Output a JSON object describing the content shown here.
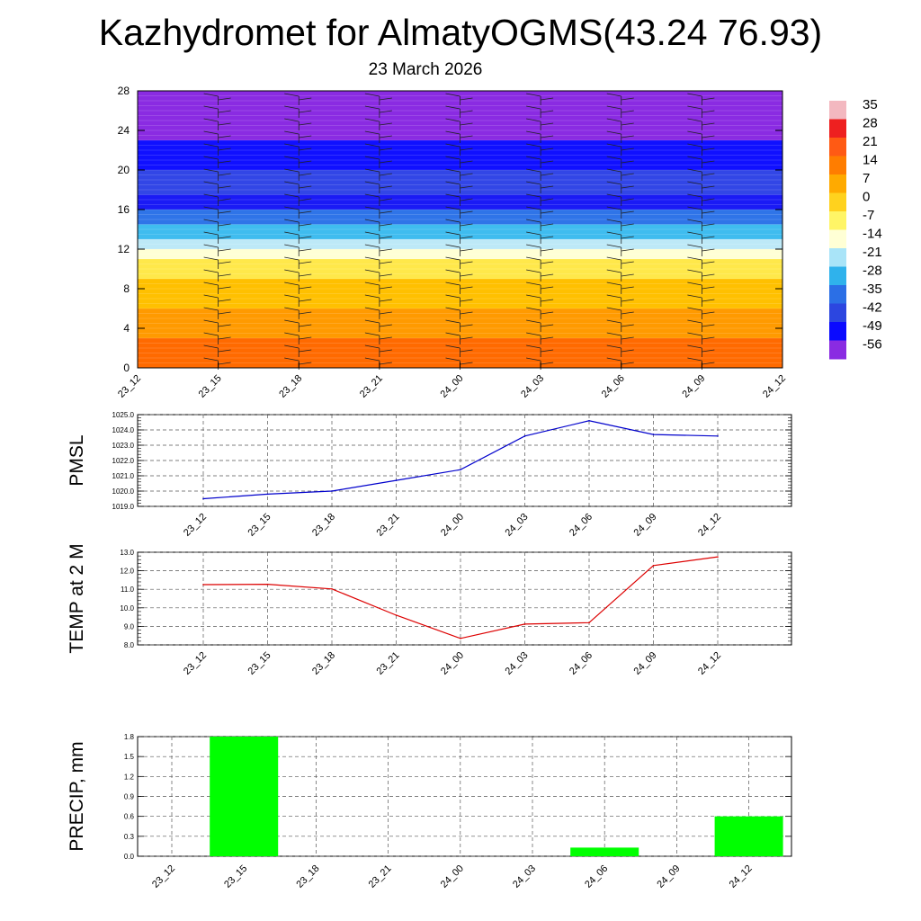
{
  "title": "Kazhydromet for AlmatyOGMS(43.24 76.93)",
  "subtitle": "23 March 2026",
  "colorbar": {
    "labels": [
      "35",
      "28",
      "21",
      "14",
      "7",
      "0",
      "-7",
      "-14",
      "-21",
      "-28",
      "-35",
      "-42",
      "-49",
      "-56"
    ],
    "colors": [
      "#f3b8c0",
      "#ee2020",
      "#ff5a14",
      "#ff7d00",
      "#ffaa00",
      "#ffd21e",
      "#fff566",
      "#ffffd5",
      "#a9e4f8",
      "#2fb2ec",
      "#2b6fe6",
      "#2c46e0",
      "#0a0aff",
      "#8a2be2"
    ]
  },
  "chart_data": [
    {
      "type": "heatmap",
      "name": "upper-air cross-section",
      "x": [
        "23_12",
        "23_15",
        "23_18",
        "23_21",
        "24_00",
        "24_03",
        "24_06",
        "24_09",
        "24_12"
      ],
      "ylim": [
        0,
        28
      ],
      "yticks": [
        "0",
        "4",
        "8",
        "12",
        "16",
        "20",
        "24",
        "28"
      ],
      "color_bands": [
        {
          "from": 0,
          "to": 3,
          "value": 14,
          "color": "#ff6a00"
        },
        {
          "from": 3,
          "to": 6,
          "value": 7,
          "color": "#ff9a00"
        },
        {
          "from": 6,
          "to": 9,
          "value": 0,
          "color": "#ffc000"
        },
        {
          "from": 9,
          "to": 11,
          "value": -7,
          "color": "#ffe84a"
        },
        {
          "from": 11,
          "to": 12,
          "value": -14,
          "color": "#ffffd5"
        },
        {
          "from": 12,
          "to": 13,
          "value": -21,
          "color": "#bde9f7"
        },
        {
          "from": 13,
          "to": 14.5,
          "value": -28,
          "color": "#3fbcef"
        },
        {
          "from": 14.5,
          "to": 16,
          "value": -35,
          "color": "#2f74e8"
        },
        {
          "from": 16,
          "to": 17.5,
          "value": -49,
          "color": "#1a1af5"
        },
        {
          "from": 17.5,
          "to": 20,
          "value": -42,
          "color": "#3246e6"
        },
        {
          "from": 20,
          "to": 23,
          "value": -56,
          "color": "#1010ff"
        },
        {
          "from": 23,
          "to": 28,
          "value": -49,
          "color": "#8a2be2"
        }
      ]
    },
    {
      "type": "line",
      "ylabel": "PMSL",
      "ylim": [
        1019,
        1025
      ],
      "yticks": [
        "1019.0",
        "1020.0",
        "1021.0",
        "1022.0",
        "1023.0",
        "1024.0",
        "1025.0"
      ],
      "x": [
        "23_12",
        "23_15",
        "23_18",
        "23_21",
        "24_00",
        "24_03",
        "24_06",
        "24_09",
        "24_12"
      ],
      "values": [
        1019.5,
        1019.8,
        1020.0,
        1020.7,
        1021.4,
        1023.6,
        1024.6,
        1023.7,
        1023.6
      ],
      "color": "#0000cc"
    },
    {
      "type": "line",
      "ylabel": "TEMP at 2 M",
      "ylim": [
        8,
        13
      ],
      "yticks": [
        "8.0",
        "9.0",
        "10.0",
        "11.0",
        "12.0",
        "13.0"
      ],
      "x": [
        "23_12",
        "23_15",
        "23_18",
        "23_21",
        "24_00",
        "24_03",
        "24_06",
        "24_09",
        "24_12"
      ],
      "values": [
        11.25,
        11.27,
        11.02,
        9.6,
        8.35,
        9.12,
        9.2,
        12.28,
        12.75
      ],
      "color": "#dd0000"
    },
    {
      "type": "bar",
      "ylabel": "PRECIP, mm",
      "ylim": [
        0,
        1.8
      ],
      "yticks": [
        "0.0",
        "0.3",
        "0.6",
        "0.9",
        "1.2",
        "1.5",
        "1.8"
      ],
      "categories": [
        "23_12",
        "23_15",
        "23_18",
        "23_21",
        "24_00",
        "24_03",
        "24_06",
        "24_09",
        "24_12"
      ],
      "values": [
        0,
        1.8,
        0,
        0,
        0,
        0,
        0.13,
        0,
        0.6
      ],
      "color": "#00ff00"
    }
  ]
}
